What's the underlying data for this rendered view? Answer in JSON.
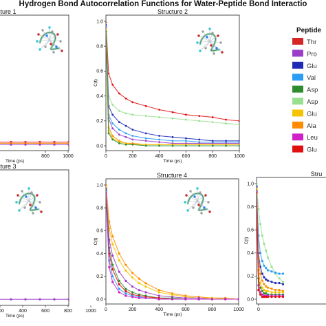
{
  "figure": {
    "title": "Hydrogen Bond Autocorrelation Functions for Water-Peptide Bond Interactio",
    "legend_title": "Peptide",
    "legend_entries": [
      {
        "label": "Thr",
        "color": "#d62728"
      },
      {
        "label": "Pro",
        "color": "#9b3fc9"
      },
      {
        "label": "Glu",
        "color": "#1f2bb5"
      },
      {
        "label": "Val",
        "color": "#2a9df4"
      },
      {
        "label": "Asp",
        "color": "#2e8b2e"
      },
      {
        "label": "Asp",
        "color": "#98e08f"
      },
      {
        "label": "Glu",
        "color": "#f5c400"
      },
      {
        "label": "Ala",
        "color": "#ff8c00"
      },
      {
        "label": "Leu",
        "color": "#d020c8"
      },
      {
        "label": "Glu",
        "color": "#e01010"
      }
    ]
  },
  "chart_data": [
    {
      "type": "scatter",
      "title": "ructure 1",
      "xlabel": "Time (ps)",
      "ylabel": "",
      "x_ticks": [
        "800",
        "1000"
      ],
      "y_ticks": [],
      "xlim": [
        0,
        1000
      ],
      "ylim": [
        0,
        1
      ],
      "series": [
        {
          "color": "#e01010",
          "x": [
            0,
            200,
            400,
            600,
            800,
            1000
          ],
          "y": [
            0.03,
            0.03,
            0.03,
            0.03,
            0.03,
            0.03
          ]
        },
        {
          "color": "#ff8c00",
          "x": [
            0,
            200,
            400,
            600,
            800,
            1000
          ],
          "y": [
            0.02,
            0.02,
            0.02,
            0.02,
            0.02,
            0.02
          ]
        },
        {
          "color": "#9b3fc9",
          "x": [
            0,
            200,
            400,
            600,
            800,
            1000
          ],
          "y": [
            0.01,
            0.01,
            0.01,
            0.01,
            0.01,
            0.01
          ]
        }
      ]
    },
    {
      "type": "scatter",
      "title": "Structure 2",
      "xlabel": "Time (ps)",
      "ylabel": "C(t)",
      "x_ticks": [
        "0",
        "200",
        "400",
        "600",
        "800",
        "1000"
      ],
      "y_ticks": [
        "0.0",
        "0.2",
        "0.4",
        "0.6",
        "0.8",
        "1.0"
      ],
      "xlim": [
        0,
        1000
      ],
      "ylim": [
        0,
        1
      ],
      "series": [
        {
          "color": "#e01010",
          "x": [
            0,
            20,
            50,
            100,
            150,
            200,
            300,
            400,
            500,
            600,
            700,
            800,
            900,
            1000
          ],
          "y": [
            0.99,
            0.58,
            0.49,
            0.42,
            0.38,
            0.35,
            0.32,
            0.29,
            0.27,
            0.25,
            0.24,
            0.23,
            0.21,
            0.2
          ]
        },
        {
          "color": "#98e08f",
          "x": [
            0,
            20,
            50,
            100,
            150,
            200,
            300,
            400,
            500,
            600,
            700,
            800,
            900,
            1000
          ],
          "y": [
            0.98,
            0.4,
            0.33,
            0.28,
            0.26,
            0.25,
            0.24,
            0.23,
            0.22,
            0.21,
            0.2,
            0.19,
            0.18,
            0.17
          ]
        },
        {
          "color": "#1f2bb5",
          "x": [
            0,
            20,
            50,
            100,
            150,
            200,
            300,
            400,
            500,
            600,
            700,
            800,
            900,
            1000
          ],
          "y": [
            0.97,
            0.32,
            0.25,
            0.19,
            0.16,
            0.13,
            0.1,
            0.08,
            0.07,
            0.06,
            0.05,
            0.04,
            0.04,
            0.04
          ]
        },
        {
          "color": "#2a9df4",
          "x": [
            0,
            20,
            50,
            100,
            150,
            200,
            300,
            400,
            500,
            600,
            700,
            800,
            900,
            1000
          ],
          "y": [
            0.96,
            0.25,
            0.18,
            0.13,
            0.1,
            0.08,
            0.06,
            0.05,
            0.04,
            0.04,
            0.03,
            0.03,
            0.03,
            0.03
          ]
        },
        {
          "color": "#9b3fc9",
          "x": [
            0,
            20,
            50,
            100,
            150,
            200,
            300,
            400,
            500,
            600,
            700,
            800,
            900,
            1000
          ],
          "y": [
            0.95,
            0.22,
            0.14,
            0.09,
            0.07,
            0.05,
            0.04,
            0.03,
            0.02,
            0.02,
            0.02,
            0.02,
            0.02,
            0.02
          ]
        },
        {
          "color": "#ff8c00",
          "x": [
            0,
            20,
            50,
            100,
            150,
            200,
            300,
            400,
            500,
            600,
            700,
            800,
            900,
            1000
          ],
          "y": [
            0.94,
            0.15,
            0.08,
            0.04,
            0.02,
            0.02,
            0.01,
            0.01,
            0.01,
            0.01,
            0.01,
            0.01,
            0.01,
            0.01
          ]
        },
        {
          "color": "#f5c400",
          "x": [
            0,
            20,
            50,
            100,
            150,
            200,
            300,
            400,
            500,
            600,
            700,
            800,
            900,
            1000
          ],
          "y": [
            0.93,
            0.12,
            0.06,
            0.03,
            0.02,
            0.01,
            0.01,
            0.01,
            0.01,
            0.01,
            0.01,
            0.01,
            0.01,
            0.01
          ]
        },
        {
          "color": "#2e8b2e",
          "x": [
            0,
            20,
            50,
            100,
            150,
            200,
            300,
            400,
            500,
            600,
            700,
            800,
            900,
            1000
          ],
          "y": [
            0.92,
            0.1,
            0.05,
            0.02,
            0.01,
            0.01,
            0.0,
            0.0,
            0.0,
            0.0,
            0.0,
            0.0,
            0.0,
            0.0
          ]
        }
      ]
    },
    {
      "type": "scatter",
      "title": "ructure 3",
      "xlabel": "Time (ps)",
      "ylabel": "",
      "x_ticks": [
        "200",
        "400",
        "600",
        "800",
        "1000"
      ],
      "y_ticks": [],
      "xlim": [
        0,
        1000
      ],
      "ylim": [
        0,
        1
      ],
      "series": [
        {
          "color": "#9b3fc9",
          "x": [
            0,
            200,
            400,
            600,
            800,
            1000
          ],
          "y": [
            0.01,
            0.01,
            0.01,
            0.01,
            0.01,
            0.01
          ]
        }
      ]
    },
    {
      "type": "scatter",
      "title": "Structure 4",
      "xlabel": "Time (ps)",
      "ylabel": "C(t)",
      "x_ticks": [
        "0",
        "200",
        "400",
        "600",
        "800",
        "1000"
      ],
      "y_ticks": [
        "0.0",
        "0.2",
        "0.4",
        "0.6",
        "0.8",
        "1.0"
      ],
      "xlim": [
        0,
        1000
      ],
      "ylim": [
        0,
        1
      ],
      "series": [
        {
          "color": "#ff8c00",
          "x": [
            0,
            25,
            50,
            100,
            150,
            200,
            250,
            300,
            400,
            500,
            600,
            700,
            800,
            900,
            1000
          ],
          "y": [
            1.0,
            0.68,
            0.55,
            0.4,
            0.3,
            0.23,
            0.18,
            0.14,
            0.08,
            0.05,
            0.03,
            0.02,
            0.01,
            0.01,
            0.0
          ]
        },
        {
          "color": "#f5c400",
          "x": [
            0,
            25,
            50,
            100,
            150,
            200,
            250,
            300,
            400,
            500,
            600,
            700,
            800,
            900,
            1000
          ],
          "y": [
            0.98,
            0.62,
            0.48,
            0.34,
            0.25,
            0.19,
            0.14,
            0.11,
            0.06,
            0.04,
            0.02,
            0.01,
            0.01,
            0.0,
            0.0
          ]
        },
        {
          "color": "#9b3fc9",
          "x": [
            0,
            25,
            50,
            100,
            150,
            200,
            250,
            300,
            400,
            500,
            600,
            700,
            800,
            900,
            1000
          ],
          "y": [
            0.97,
            0.52,
            0.38,
            0.24,
            0.16,
            0.11,
            0.08,
            0.06,
            0.03,
            0.02,
            0.01,
            0.01,
            0.0,
            0.0,
            0.0
          ]
        },
        {
          "color": "#2e8b2e",
          "x": [
            0,
            25,
            50,
            100,
            150,
            200,
            250,
            300,
            400,
            500,
            600,
            700,
            800,
            900,
            1000
          ],
          "y": [
            0.96,
            0.45,
            0.3,
            0.16,
            0.09,
            0.06,
            0.04,
            0.03,
            0.01,
            0.01,
            0.0,
            0.0,
            0.0,
            0.0,
            0.0
          ]
        },
        {
          "color": "#e01010",
          "x": [
            0,
            25,
            50,
            100,
            150,
            200,
            250,
            300,
            400,
            500,
            600,
            700,
            800,
            900,
            1000
          ],
          "y": [
            0.95,
            0.4,
            0.26,
            0.13,
            0.07,
            0.04,
            0.03,
            0.02,
            0.01,
            0.0,
            0.0,
            0.0,
            0.0,
            0.0,
            0.0
          ]
        },
        {
          "color": "#2a9df4",
          "x": [
            0,
            25,
            50,
            100,
            150,
            200,
            250,
            300,
            400,
            500,
            600,
            700,
            800,
            900,
            1000
          ],
          "y": [
            0.94,
            0.34,
            0.2,
            0.09,
            0.05,
            0.03,
            0.02,
            0.01,
            0.0,
            0.0,
            0.0,
            0.0,
            0.0,
            0.0,
            0.0
          ]
        },
        {
          "color": "#d020c8",
          "x": [
            0,
            25,
            50,
            100,
            150,
            200,
            250,
            300,
            400,
            500,
            600,
            700,
            800,
            900,
            1000
          ],
          "y": [
            0.93,
            0.28,
            0.15,
            0.06,
            0.03,
            0.02,
            0.01,
            0.01,
            0.0,
            0.0,
            0.0,
            0.0,
            0.0,
            0.0,
            0.0
          ]
        }
      ]
    },
    {
      "type": "scatter",
      "title": "Stru",
      "xlabel": "",
      "ylabel": "C(t)",
      "x_ticks": [
        "0"
      ],
      "y_ticks": [
        "0.0",
        "0.2",
        "0.4",
        "0.6",
        "0.8",
        "1.0"
      ],
      "xlim": [
        0,
        1000
      ],
      "ylim": [
        0,
        1
      ],
      "series": [
        {
          "color": "#98e08f",
          "x": [
            0,
            25,
            50,
            75,
            100,
            125,
            150,
            200,
            250,
            300,
            350
          ],
          "y": [
            1.0,
            0.78,
            0.65,
            0.55,
            0.48,
            0.42,
            0.36,
            0.28,
            0.22,
            0.18,
            0.15
          ]
        },
        {
          "color": "#2a9df4",
          "x": [
            0,
            25,
            50,
            75,
            100,
            125,
            150,
            200,
            250,
            300,
            350
          ],
          "y": [
            0.98,
            0.55,
            0.4,
            0.33,
            0.29,
            0.27,
            0.25,
            0.24,
            0.23,
            0.22,
            0.22
          ]
        },
        {
          "color": "#1f2bb5",
          "x": [
            0,
            25,
            50,
            75,
            100,
            125,
            150,
            200,
            250,
            300,
            350
          ],
          "y": [
            0.97,
            0.4,
            0.28,
            0.22,
            0.19,
            0.17,
            0.16,
            0.15,
            0.14,
            0.14,
            0.13
          ]
        },
        {
          "color": "#ff8c00",
          "x": [
            0,
            25,
            50,
            75,
            100,
            125,
            150,
            200,
            250,
            300,
            350
          ],
          "y": [
            0.96,
            0.35,
            0.22,
            0.16,
            0.13,
            0.11,
            0.1,
            0.09,
            0.08,
            0.08,
            0.07
          ]
        },
        {
          "color": "#f5c400",
          "x": [
            0,
            25,
            50,
            75,
            100,
            125,
            150,
            200,
            250,
            300,
            350
          ],
          "y": [
            0.95,
            0.25,
            0.14,
            0.1,
            0.08,
            0.07,
            0.07,
            0.06,
            0.06,
            0.06,
            0.06
          ]
        },
        {
          "color": "#2e8b2e",
          "x": [
            0,
            25,
            50,
            75,
            100,
            125,
            150,
            200,
            250,
            300,
            350
          ],
          "y": [
            0.94,
            0.18,
            0.1,
            0.07,
            0.05,
            0.05,
            0.04,
            0.04,
            0.04,
            0.04,
            0.04
          ]
        },
        {
          "color": "#d020c8",
          "x": [
            0,
            25,
            50,
            75,
            100,
            125,
            150,
            200,
            250,
            300,
            350
          ],
          "y": [
            0.93,
            0.12,
            0.06,
            0.04,
            0.03,
            0.03,
            0.03,
            0.03,
            0.03,
            0.03,
            0.03
          ]
        },
        {
          "color": "#e01010",
          "x": [
            0,
            25,
            50,
            75,
            100,
            125,
            150,
            200,
            250,
            300,
            350
          ],
          "y": [
            0.92,
            0.08,
            0.04,
            0.02,
            0.02,
            0.02,
            0.02,
            0.02,
            0.02,
            0.02,
            0.02
          ]
        }
      ]
    }
  ]
}
